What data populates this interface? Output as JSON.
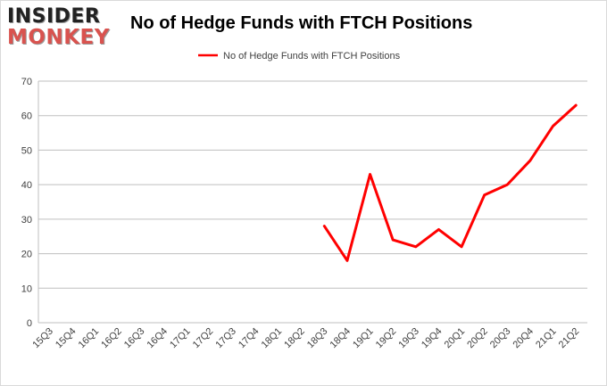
{
  "logo": {
    "line1": "INSIDER",
    "line2": "MONKEY"
  },
  "chart_data": {
    "type": "line",
    "title": "No of Hedge Funds with FTCH Positions",
    "xlabel": "",
    "ylabel": "",
    "categories": [
      "15Q3",
      "15Q4",
      "16Q1",
      "16Q2",
      "16Q3",
      "16Q4",
      "17Q1",
      "17Q2",
      "17Q3",
      "17Q4",
      "18Q1",
      "18Q2",
      "18Q3",
      "18Q4",
      "19Q1",
      "19Q2",
      "19Q3",
      "19Q4",
      "20Q1",
      "20Q2",
      "20Q3",
      "20Q4",
      "21Q1",
      "21Q2"
    ],
    "series": [
      {
        "name": "No of Hedge Funds with FTCH Positions",
        "color": "#ff0000",
        "values": [
          null,
          null,
          null,
          null,
          null,
          null,
          null,
          null,
          null,
          null,
          null,
          null,
          28,
          18,
          43,
          24,
          22,
          27,
          22,
          37,
          40,
          47,
          57,
          63
        ]
      }
    ],
    "ylim": [
      0,
      70
    ],
    "yticks": [
      0,
      10,
      20,
      30,
      40,
      50,
      60,
      70
    ],
    "grid": true,
    "legend_position": "top"
  }
}
